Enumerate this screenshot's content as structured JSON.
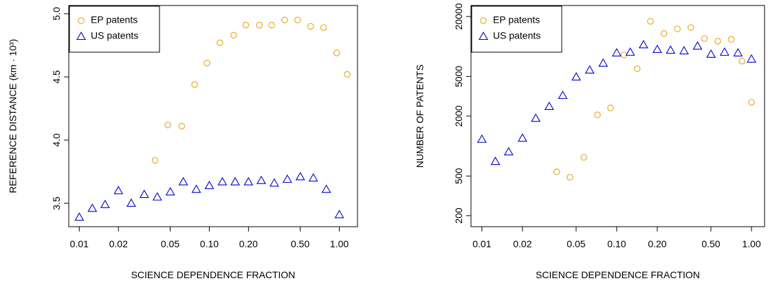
{
  "chart_data": [
    {
      "type": "scatter",
      "xlabel": "SCIENCE DEPENDENCE FRACTION",
      "ylabel": "REFERENCE DISTANCE (km · 10³)",
      "xlog": true,
      "ylog": false,
      "legend": "top-left",
      "xlim": [
        0.0083,
        1.38
      ],
      "ylim": [
        3.315,
        5.065
      ],
      "xticks": [
        0.01,
        0.02,
        0.05,
        {
          "value": 0.1,
          "label": "0.10"
        },
        {
          "value": 0.2,
          "label": "0.20"
        },
        {
          "value": 0.5,
          "label": "0.50"
        },
        {
          "value": 1,
          "label": "1.00"
        }
      ],
      "yticks": [
        3.5,
        {
          "value": 4,
          "label": "4.0"
        },
        4.5,
        {
          "value": 5,
          "label": "5.0"
        }
      ],
      "series": [
        {
          "name": "EP patents",
          "color": "#e8a317",
          "marker": "circle",
          "x": [
            0.0383,
            0.048,
            0.0613,
            0.0771,
            0.096,
            0.1206,
            0.154,
            0.191,
            0.243,
            0.302,
            0.38,
            0.478,
            0.602,
            0.757,
            0.953,
            1.15
          ],
          "values": [
            3.84,
            4.12,
            4.11,
            4.44,
            4.61,
            4.77,
            4.83,
            4.91,
            4.91,
            4.91,
            4.95,
            4.95,
            4.9,
            4.89,
            4.69,
            4.52
          ]
        },
        {
          "name": "US patents",
          "color": "#0000cc",
          "marker": "triangle",
          "x": [
            0.01,
            0.0126,
            0.0158,
            0.02,
            0.0251,
            0.0316,
            0.0398,
            0.0501,
            0.0631,
            0.0794,
            0.1,
            0.126,
            0.158,
            0.2,
            0.251,
            0.316,
            0.398,
            0.501,
            0.631,
            0.794,
            1.0
          ],
          "values": [
            3.39,
            3.46,
            3.49,
            3.6,
            3.5,
            3.57,
            3.55,
            3.59,
            3.67,
            3.61,
            3.64,
            3.67,
            3.67,
            3.67,
            3.68,
            3.66,
            3.69,
            3.71,
            3.7,
            3.61,
            3.41
          ]
        }
      ]
    },
    {
      "type": "scatter",
      "xlabel": "SCIENCE DEPENDENCE FRACTION",
      "ylabel": "NUMBER OF PATENTS",
      "xlog": true,
      "ylog": true,
      "legend": "top-left",
      "xlim": [
        0.0083,
        1.25
      ],
      "ylim": [
        155,
        25800
      ],
      "xticks": [
        0.01,
        0.02,
        0.05,
        {
          "value": 0.1,
          "label": "0.10"
        },
        {
          "value": 0.2,
          "label": "0.20"
        },
        {
          "value": 0.5,
          "label": "0.50"
        },
        {
          "value": 1,
          "label": "1.00"
        }
      ],
      "yticks": [
        200,
        500,
        2000,
        5000,
        20000
      ],
      "series": [
        {
          "name": "EP patents",
          "color": "#e8a317",
          "marker": "circle",
          "x": [
            0.0359,
            0.045,
            0.057,
            0.072,
            0.09,
            0.113,
            0.142,
            0.178,
            0.224,
            0.282,
            0.355,
            0.447,
            0.562,
            0.708,
            0.85,
            1.0
          ],
          "values": [
            552,
            486,
            771,
            2060,
            2420,
            8220,
            5980,
            17900,
            13500,
            15000,
            15500,
            12000,
            11300,
            11800,
            7130,
            2750
          ]
        },
        {
          "name": "US patents",
          "color": "#0000cc",
          "marker": "triangle",
          "x": [
            0.01,
            0.0126,
            0.0158,
            0.02,
            0.0251,
            0.0316,
            0.0398,
            0.0501,
            0.0631,
            0.0794,
            0.1,
            0.126,
            0.158,
            0.2,
            0.251,
            0.316,
            0.398,
            0.501,
            0.631,
            0.794,
            1.0
          ],
          "values": [
            1170,
            700,
            875,
            1200,
            1900,
            2500,
            3220,
            4940,
            5800,
            6800,
            8620,
            8760,
            10400,
            9340,
            9180,
            9040,
            10100,
            8360,
            8760,
            8620,
            7470
          ]
        }
      ]
    }
  ]
}
